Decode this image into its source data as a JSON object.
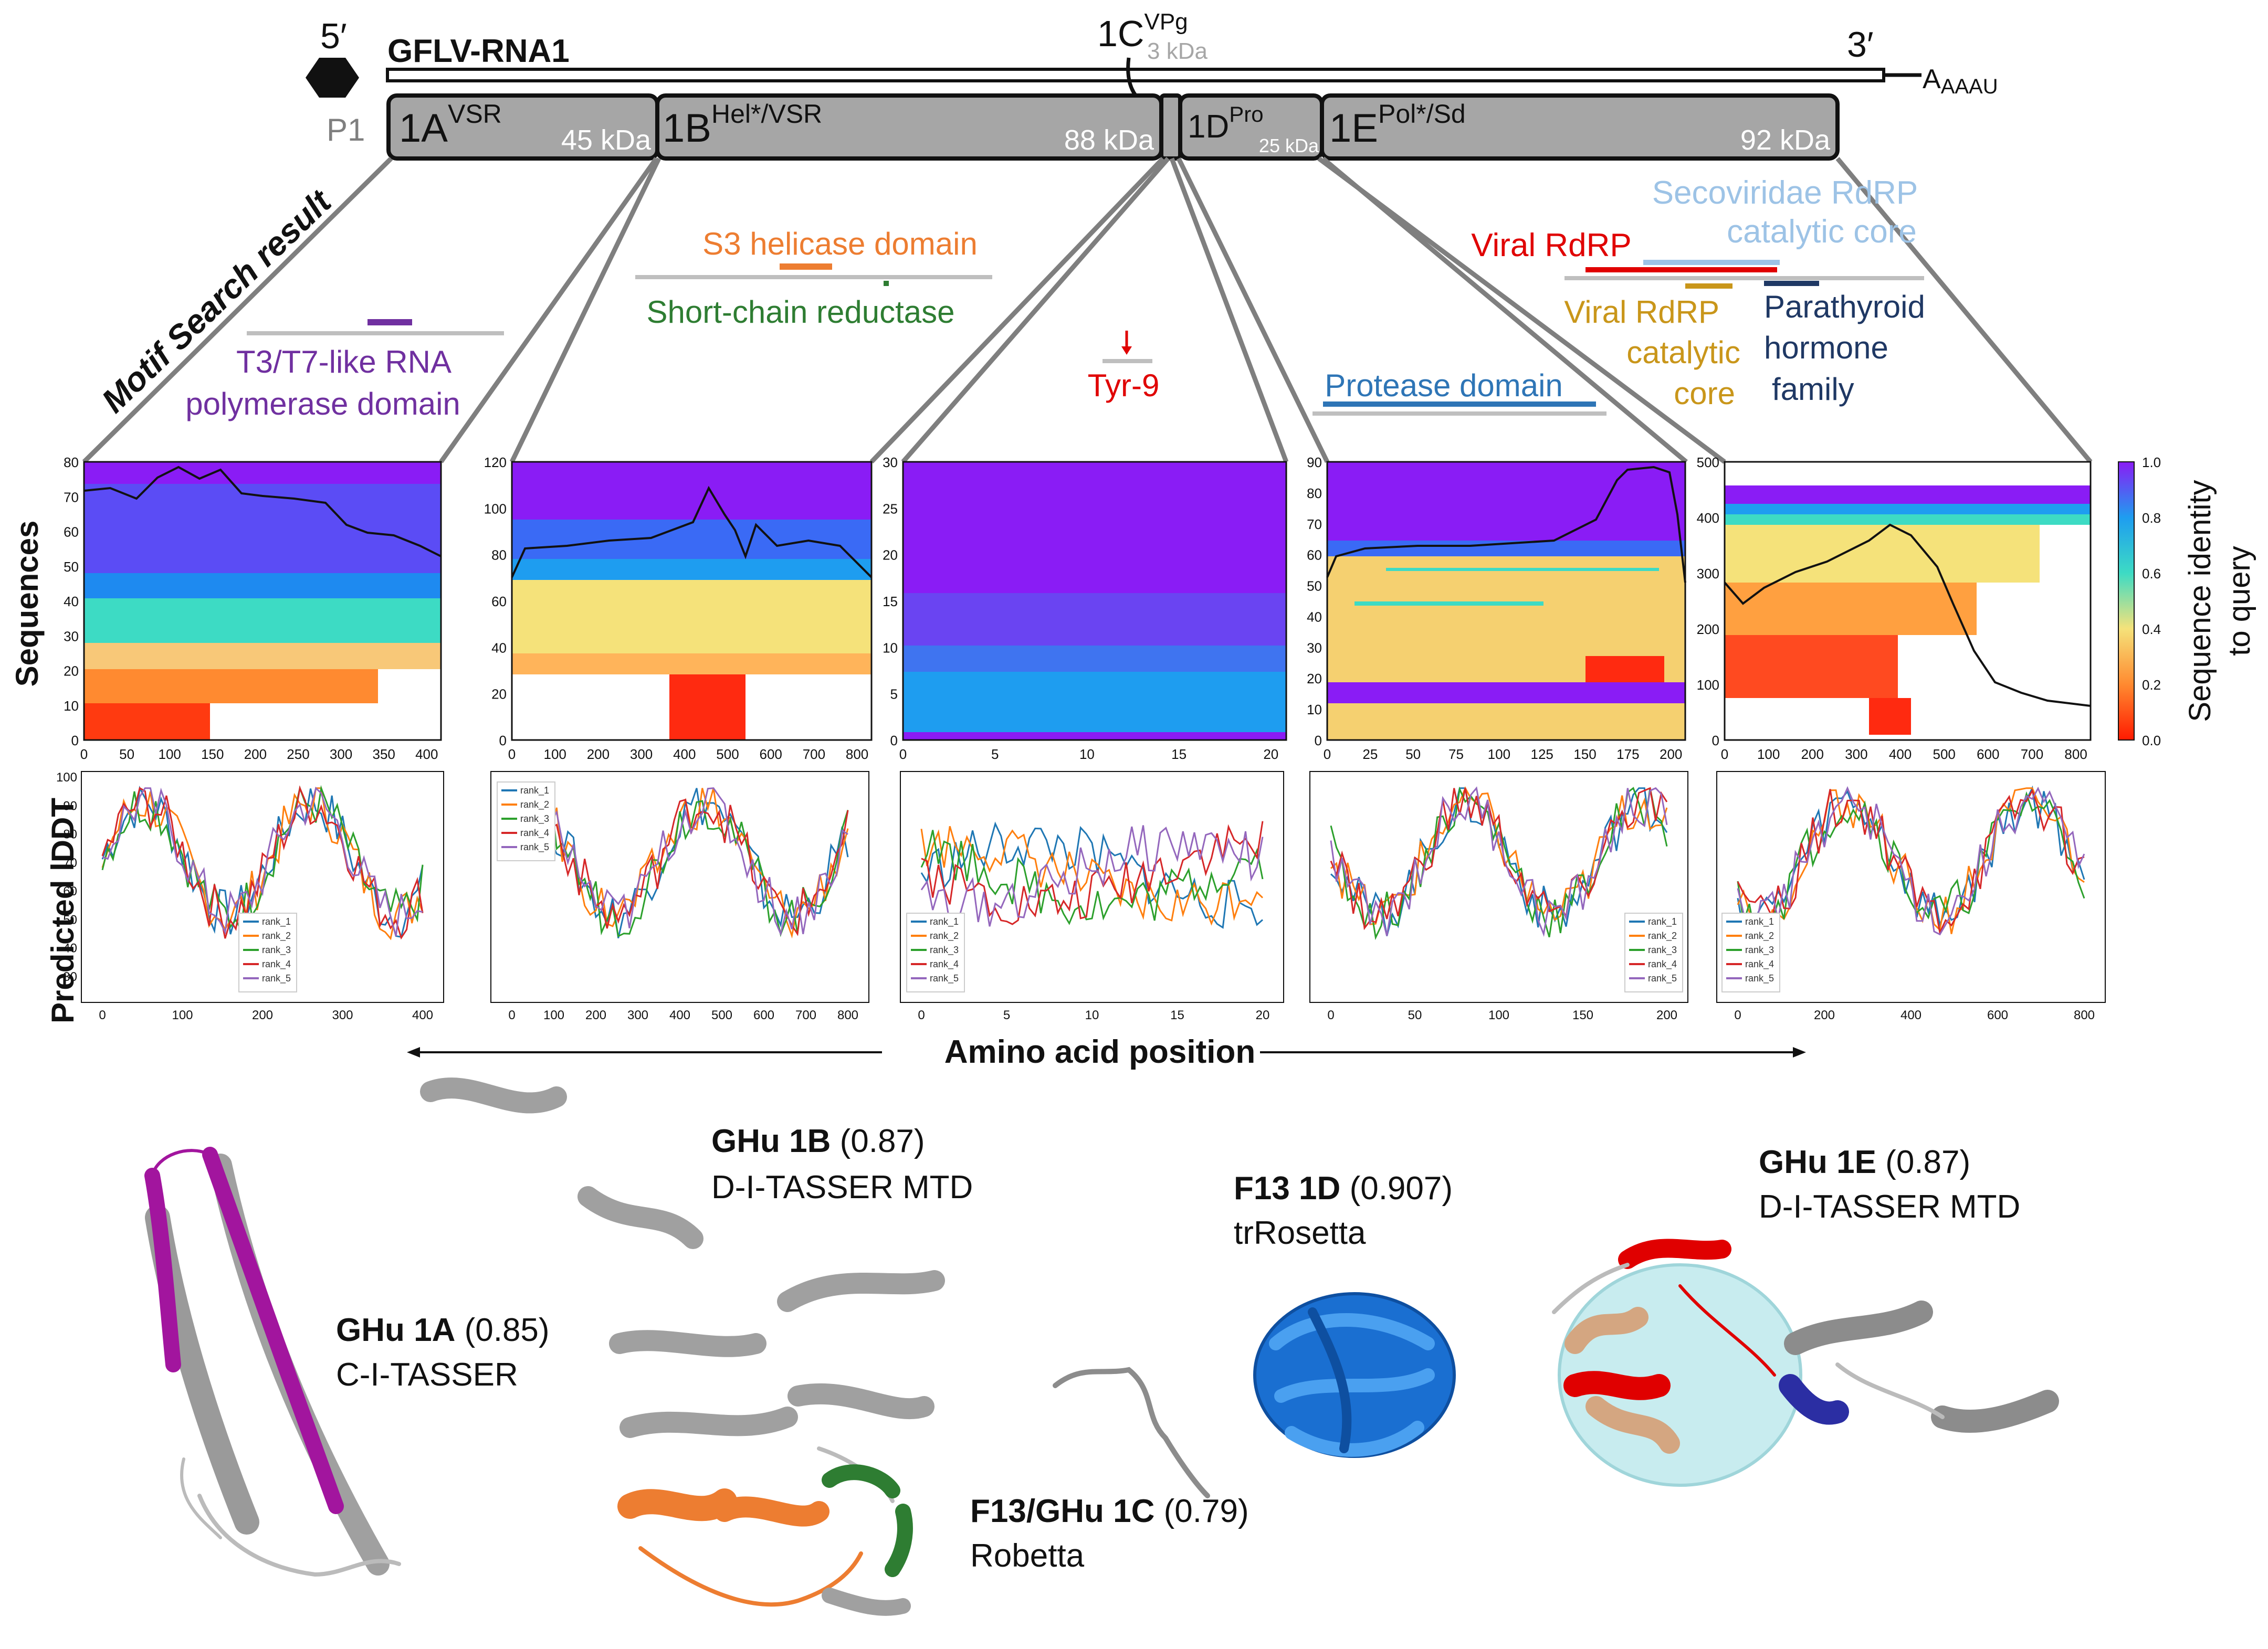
{
  "genome": {
    "five_prime": "5′",
    "three_prime": "3′",
    "rna_name": "GFLV-RNA1",
    "p1": "P1",
    "poly_a": {
      "a1": "A",
      "a2": "AAAU"
    },
    "vpg": {
      "main": "1C",
      "sup": "VPg",
      "kda": "3 kDa"
    }
  },
  "proteins": {
    "p1a": {
      "main": "1A",
      "sup": "VSR",
      "kda": "45 kDa"
    },
    "p1b": {
      "main": "1B",
      "sup": "Hel*/VSR",
      "kda": "88 kDa"
    },
    "p1d": {
      "main": "1D",
      "sup": "Pro",
      "kda": "25 kDa"
    },
    "p1e": {
      "main": "1E",
      "sup": "Pol*/Sd",
      "kda": "92 kDa"
    }
  },
  "colors": {
    "box": "#a6a6a6",
    "purple": "#7030a0",
    "orange": "#ed7d31",
    "green": "#2e7d32",
    "red": "#e00000",
    "blue": "#2e75b6",
    "lightblue": "#9dc3e6",
    "gold": "#c9961a",
    "navy": "#1f3864"
  },
  "motifs": {
    "heading": "Motif Search result",
    "t3t7_l1": "T3/T7-like RNA",
    "t3t7_l2": "polymerase domain",
    "s3": "S3 helicase domain",
    "scr": "Short-chain reductase",
    "tyr": "Tyr-9",
    "protease": "Protease domain",
    "viral_rdrp": "Viral RdRP",
    "seco_l1": "Secoviridae RdRP",
    "seco_l2": "catalytic core",
    "cat_l1": "Viral RdRP",
    "cat_l2": "catalytic",
    "cat_l3": "core",
    "pth_l1": "Parathyroid",
    "pth_l2": "hormone",
    "pth_l3": "family"
  },
  "axes": {
    "sequences": "Sequences",
    "plddt": "Predicted lDDT",
    "aa_position": "Amino acid position",
    "colorbar_l1": "Sequence identity",
    "colorbar_l2": "to query",
    "cb_ticks": [
      "1.0",
      "0.8",
      "0.6",
      "0.4",
      "0.2",
      "0.0"
    ]
  },
  "seq_panels": [
    {
      "yticks": [
        "80",
        "70",
        "60",
        "50",
        "40",
        "30",
        "20",
        "10",
        "0"
      ],
      "xticks": [
        "0",
        "50",
        "100",
        "150",
        "200",
        "250",
        "300",
        "350",
        "400"
      ]
    },
    {
      "yticks": [
        "120",
        "100",
        "80",
        "60",
        "40",
        "20",
        "0"
      ],
      "xticks": [
        "0",
        "100",
        "200",
        "300",
        "400",
        "500",
        "600",
        "700",
        "800"
      ]
    },
    {
      "yticks": [
        "30",
        "25",
        "20",
        "15",
        "10",
        "5",
        "0"
      ],
      "xticks": [
        "0",
        "5",
        "10",
        "15",
        "20"
      ]
    },
    {
      "yticks": [
        "90",
        "80",
        "70",
        "60",
        "50",
        "40",
        "30",
        "20",
        "10",
        "0"
      ],
      "xticks": [
        "0",
        "25",
        "50",
        "75",
        "100",
        "125",
        "150",
        "175",
        "200"
      ]
    },
    {
      "yticks": [
        "500",
        "400",
        "300",
        "200",
        "100",
        "0"
      ],
      "xticks": [
        "0",
        "100",
        "200",
        "300",
        "400",
        "500",
        "600",
        "700",
        "800"
      ]
    }
  ],
  "plddt_panels": [
    {
      "yticks": [
        "100",
        "90",
        "80",
        "70",
        "60",
        "50",
        "40",
        "30"
      ],
      "xticks": [
        "0",
        "100",
        "200",
        "300",
        "400"
      ]
    },
    {
      "xticks": [
        "0",
        "100",
        "200",
        "300",
        "400",
        "500",
        "600",
        "700",
        "800"
      ]
    },
    {
      "xticks": [
        "0",
        "5",
        "10",
        "15",
        "20"
      ]
    },
    {
      "xticks": [
        "0",
        "50",
        "100",
        "150",
        "200"
      ]
    },
    {
      "xticks": [
        "0",
        "200",
        "400",
        "600",
        "800"
      ]
    }
  ],
  "legend_labels": [
    "rank_1",
    "rank_2",
    "rank_3",
    "rank_4",
    "rank_5"
  ],
  "structures": {
    "s1a": {
      "name": "GHu 1A",
      "score": "(0.85)",
      "method": "C-I-TASSER"
    },
    "s1b": {
      "name": "GHu 1B",
      "score": "(0.87)",
      "method": "D-I-TASSER MTD"
    },
    "s1c": {
      "name": "F13/GHu 1C",
      "score": "(0.79)",
      "method": "Robetta"
    },
    "s1d": {
      "name": "F13 1D",
      "score": "(0.907)",
      "method": "trRosetta"
    },
    "s1e": {
      "name": "GHu 1E",
      "score": "(0.87)",
      "method": "D-I-TASSER MTD"
    }
  }
}
